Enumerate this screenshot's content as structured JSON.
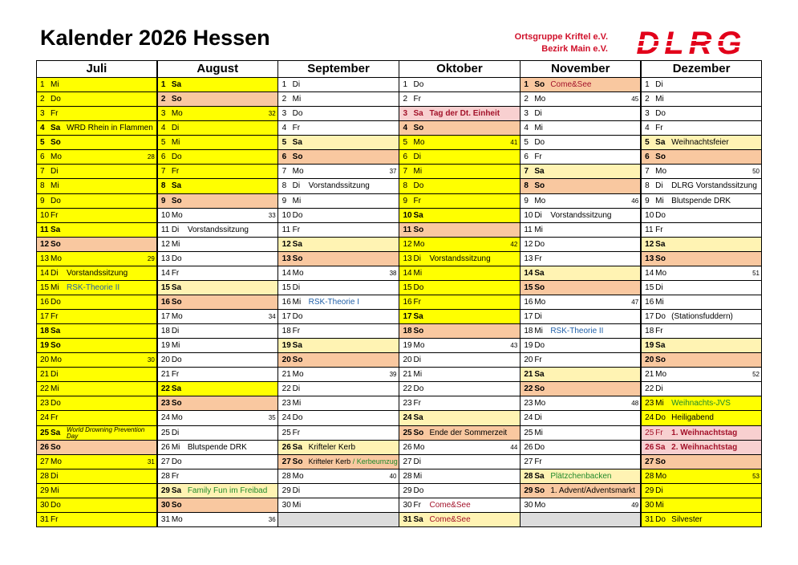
{
  "header": {
    "title": "Kalender 2026 Hessen",
    "org1": "Ortsgruppe Kriftel e.V.",
    "org2": "Bezirk Main e.V.",
    "logo": "DLRG"
  },
  "colors": {
    "y": "#ffff00",
    "s": "#fff3b3",
    "o": "#f9c8a0",
    "p": "#f8d0d0",
    "w": "#ffffff",
    "g": "#dcdcdc",
    "b": "#1f5fa8",
    "gr": "#1f8a2a",
    "r": "#a3122a",
    "k": "#000000",
    "logo": "#e2001a"
  },
  "months": [
    {
      "name": "Juli",
      "days": [
        {
          "d": 1,
          "wd": "Mi",
          "bg": "y"
        },
        {
          "d": 2,
          "wd": "Do",
          "bg": "y"
        },
        {
          "d": 3,
          "wd": "Fr",
          "bg": "y"
        },
        {
          "d": 4,
          "wd": "Sa",
          "bg": "y",
          "ev": "WRD Rhein in Flammen"
        },
        {
          "d": 5,
          "wd": "So",
          "bg": "y"
        },
        {
          "d": 6,
          "wd": "Mo",
          "bg": "y",
          "w": 28
        },
        {
          "d": 7,
          "wd": "Di",
          "bg": "y"
        },
        {
          "d": 8,
          "wd": "Mi",
          "bg": "y"
        },
        {
          "d": 9,
          "wd": "Do",
          "bg": "y"
        },
        {
          "d": 10,
          "wd": "Fr",
          "bg": "y"
        },
        {
          "d": 11,
          "wd": "Sa",
          "bg": "y"
        },
        {
          "d": 12,
          "wd": "So",
          "bg": "o"
        },
        {
          "d": 13,
          "wd": "Mo",
          "bg": "y",
          "w": 29
        },
        {
          "d": 14,
          "wd": "Di",
          "bg": "y",
          "ev": "Vorstandssitzung"
        },
        {
          "d": 15,
          "wd": "Mi",
          "bg": "y",
          "ev": "RSK-Theorie II",
          "ec": "b"
        },
        {
          "d": 16,
          "wd": "Do",
          "bg": "y"
        },
        {
          "d": 17,
          "wd": "Fr",
          "bg": "y"
        },
        {
          "d": 18,
          "wd": "Sa",
          "bg": "y"
        },
        {
          "d": 19,
          "wd": "So",
          "bg": "y"
        },
        {
          "d": 20,
          "wd": "Mo",
          "bg": "y",
          "w": 30
        },
        {
          "d": 21,
          "wd": "Di",
          "bg": "y"
        },
        {
          "d": 22,
          "wd": "Mi",
          "bg": "y"
        },
        {
          "d": 23,
          "wd": "Do",
          "bg": "y"
        },
        {
          "d": 24,
          "wd": "Fr",
          "bg": "y"
        },
        {
          "d": 25,
          "wd": "Sa",
          "bg": "y",
          "ev": "World Drowning Prevention Day",
          "small": true
        },
        {
          "d": 26,
          "wd": "So",
          "bg": "o"
        },
        {
          "d": 27,
          "wd": "Mo",
          "bg": "y",
          "w": 31
        },
        {
          "d": 28,
          "wd": "Di",
          "bg": "y"
        },
        {
          "d": 29,
          "wd": "Mi",
          "bg": "y"
        },
        {
          "d": 30,
          "wd": "Do",
          "bg": "y"
        },
        {
          "d": 31,
          "wd": "Fr",
          "bg": "y"
        }
      ]
    },
    {
      "name": "August",
      "days": [
        {
          "d": 1,
          "wd": "Sa",
          "bg": "y"
        },
        {
          "d": 2,
          "wd": "So",
          "bg": "o"
        },
        {
          "d": 3,
          "wd": "Mo",
          "bg": "y",
          "w": 32
        },
        {
          "d": 4,
          "wd": "Di",
          "bg": "y"
        },
        {
          "d": 5,
          "wd": "Mi",
          "bg": "y"
        },
        {
          "d": 6,
          "wd": "Do",
          "bg": "y"
        },
        {
          "d": 7,
          "wd": "Fr",
          "bg": "y"
        },
        {
          "d": 8,
          "wd": "Sa",
          "bg": "y"
        },
        {
          "d": 9,
          "wd": "So",
          "bg": "o"
        },
        {
          "d": 10,
          "wd": "Mo",
          "w": 33
        },
        {
          "d": 11,
          "wd": "Di",
          "ev": "Vorstandssitzung"
        },
        {
          "d": 12,
          "wd": "Mi"
        },
        {
          "d": 13,
          "wd": "Do"
        },
        {
          "d": 14,
          "wd": "Fr"
        },
        {
          "d": 15,
          "wd": "Sa",
          "bg": "s"
        },
        {
          "d": 16,
          "wd": "So",
          "bg": "o"
        },
        {
          "d": 17,
          "wd": "Mo",
          "w": 34
        },
        {
          "d": 18,
          "wd": "Di"
        },
        {
          "d": 19,
          "wd": "Mi"
        },
        {
          "d": 20,
          "wd": "Do"
        },
        {
          "d": 21,
          "wd": "Fr"
        },
        {
          "d": 22,
          "wd": "Sa",
          "bg": "y"
        },
        {
          "d": 23,
          "wd": "So",
          "bg": "o"
        },
        {
          "d": 24,
          "wd": "Mo",
          "w": 35
        },
        {
          "d": 25,
          "wd": "Di"
        },
        {
          "d": 26,
          "wd": "Mi",
          "ev": "Blutspende DRK"
        },
        {
          "d": 27,
          "wd": "Do"
        },
        {
          "d": 28,
          "wd": "Fr"
        },
        {
          "d": 29,
          "wd": "Sa",
          "bg": "s",
          "ev": "Family Fun im Freibad",
          "ec": "gr"
        },
        {
          "d": 30,
          "wd": "So",
          "bg": "o"
        },
        {
          "d": 31,
          "wd": "Mo",
          "w": 36
        }
      ]
    },
    {
      "name": "September",
      "days": [
        {
          "d": 1,
          "wd": "Di"
        },
        {
          "d": 2,
          "wd": "Mi"
        },
        {
          "d": 3,
          "wd": "Do"
        },
        {
          "d": 4,
          "wd": "Fr"
        },
        {
          "d": 5,
          "wd": "Sa",
          "bg": "s"
        },
        {
          "d": 6,
          "wd": "So",
          "bg": "o"
        },
        {
          "d": 7,
          "wd": "Mo",
          "w": 37
        },
        {
          "d": 8,
          "wd": "Di",
          "ev": "Vorstandssitzung"
        },
        {
          "d": 9,
          "wd": "Mi"
        },
        {
          "d": 10,
          "wd": "Do"
        },
        {
          "d": 11,
          "wd": "Fr"
        },
        {
          "d": 12,
          "wd": "Sa",
          "bg": "s"
        },
        {
          "d": 13,
          "wd": "So",
          "bg": "o"
        },
        {
          "d": 14,
          "wd": "Mo",
          "w": 38
        },
        {
          "d": 15,
          "wd": "Di"
        },
        {
          "d": 16,
          "wd": "Mi",
          "ev": "RSK-Theorie I",
          "ec": "b"
        },
        {
          "d": 17,
          "wd": "Do"
        },
        {
          "d": 18,
          "wd": "Fr"
        },
        {
          "d": 19,
          "wd": "Sa",
          "bg": "s"
        },
        {
          "d": 20,
          "wd": "So",
          "bg": "o"
        },
        {
          "d": 21,
          "wd": "Mo",
          "w": 39
        },
        {
          "d": 22,
          "wd": "Di"
        },
        {
          "d": 23,
          "wd": "Mi"
        },
        {
          "d": 24,
          "wd": "Do"
        },
        {
          "d": 25,
          "wd": "Fr"
        },
        {
          "d": 26,
          "wd": "Sa",
          "bg": "s",
          "ev": "Krifteler Kerb"
        },
        {
          "d": 27,
          "wd": "So",
          "bg": "o",
          "ev": "Krifteler Kerb",
          "ev2": "/ Kerbeumzug",
          "ec2": "gr"
        },
        {
          "d": 28,
          "wd": "Mo",
          "w": 40
        },
        {
          "d": 29,
          "wd": "Di"
        },
        {
          "d": 30,
          "wd": "Mi"
        }
      ]
    },
    {
      "name": "Oktober",
      "days": [
        {
          "d": 1,
          "wd": "Do"
        },
        {
          "d": 2,
          "wd": "Fr"
        },
        {
          "d": 3,
          "wd": "Sa",
          "bg": "p",
          "ev": "Tag der Dt. Einheit",
          "ec": "r",
          "red": true
        },
        {
          "d": 4,
          "wd": "So",
          "bg": "o"
        },
        {
          "d": 5,
          "wd": "Mo",
          "bg": "y",
          "w": 41
        },
        {
          "d": 6,
          "wd": "Di",
          "bg": "y"
        },
        {
          "d": 7,
          "wd": "Mi",
          "bg": "y"
        },
        {
          "d": 8,
          "wd": "Do",
          "bg": "y"
        },
        {
          "d": 9,
          "wd": "Fr",
          "bg": "y"
        },
        {
          "d": 10,
          "wd": "Sa",
          "bg": "y"
        },
        {
          "d": 11,
          "wd": "So",
          "bg": "o"
        },
        {
          "d": 12,
          "wd": "Mo",
          "bg": "y",
          "w": 42
        },
        {
          "d": 13,
          "wd": "Di",
          "bg": "y",
          "ev": "Vorstandssitzung"
        },
        {
          "d": 14,
          "wd": "Mi",
          "bg": "y"
        },
        {
          "d": 15,
          "wd": "Do",
          "bg": "y"
        },
        {
          "d": 16,
          "wd": "Fr",
          "bg": "y"
        },
        {
          "d": 17,
          "wd": "Sa",
          "bg": "y"
        },
        {
          "d": 18,
          "wd": "So",
          "bg": "o"
        },
        {
          "d": 19,
          "wd": "Mo",
          "w": 43
        },
        {
          "d": 20,
          "wd": "Di"
        },
        {
          "d": 21,
          "wd": "Mi"
        },
        {
          "d": 22,
          "wd": "Do"
        },
        {
          "d": 23,
          "wd": "Fr"
        },
        {
          "d": 24,
          "wd": "Sa",
          "bg": "s"
        },
        {
          "d": 25,
          "wd": "So",
          "bg": "o",
          "ev": "Ende der Sommerzeit"
        },
        {
          "d": 26,
          "wd": "Mo",
          "w": 44
        },
        {
          "d": 27,
          "wd": "Di"
        },
        {
          "d": 28,
          "wd": "Mi"
        },
        {
          "d": 29,
          "wd": "Do"
        },
        {
          "d": 30,
          "wd": "Fr",
          "ev": "Come&See",
          "ec": "r"
        },
        {
          "d": 31,
          "wd": "Sa",
          "bg": "s",
          "ev": "Come&See",
          "ec": "r"
        }
      ]
    },
    {
      "name": "November",
      "days": [
        {
          "d": 1,
          "wd": "So",
          "bg": "o",
          "ev": "Come&See",
          "ec": "r"
        },
        {
          "d": 2,
          "wd": "Mo",
          "w": 45
        },
        {
          "d": 3,
          "wd": "Di"
        },
        {
          "d": 4,
          "wd": "Mi"
        },
        {
          "d": 5,
          "wd": "Do"
        },
        {
          "d": 6,
          "wd": "Fr"
        },
        {
          "d": 7,
          "wd": "Sa",
          "bg": "s"
        },
        {
          "d": 8,
          "wd": "So",
          "bg": "o"
        },
        {
          "d": 9,
          "wd": "Mo",
          "w": 46
        },
        {
          "d": 10,
          "wd": "Di",
          "ev": "Vorstandssitzung"
        },
        {
          "d": 11,
          "wd": "Mi"
        },
        {
          "d": 12,
          "wd": "Do"
        },
        {
          "d": 13,
          "wd": "Fr"
        },
        {
          "d": 14,
          "wd": "Sa",
          "bg": "s"
        },
        {
          "d": 15,
          "wd": "So",
          "bg": "o"
        },
        {
          "d": 16,
          "wd": "Mo",
          "w": 47
        },
        {
          "d": 17,
          "wd": "Di"
        },
        {
          "d": 18,
          "wd": "Mi",
          "ev": "RSK-Theorie II",
          "ec": "b"
        },
        {
          "d": 19,
          "wd": "Do"
        },
        {
          "d": 20,
          "wd": "Fr"
        },
        {
          "d": 21,
          "wd": "Sa",
          "bg": "s"
        },
        {
          "d": 22,
          "wd": "So",
          "bg": "o"
        },
        {
          "d": 23,
          "wd": "Mo",
          "w": 48
        },
        {
          "d": 24,
          "wd": "Di"
        },
        {
          "d": 25,
          "wd": "Mi"
        },
        {
          "d": 26,
          "wd": "Do"
        },
        {
          "d": 27,
          "wd": "Fr"
        },
        {
          "d": 28,
          "wd": "Sa",
          "bg": "s",
          "ev": "Plätzchenbacken",
          "ec": "gr"
        },
        {
          "d": 29,
          "wd": "So",
          "bg": "o",
          "ev": "1. Advent/Adventsmarkt"
        },
        {
          "d": 30,
          "wd": "Mo",
          "w": 49
        }
      ]
    },
    {
      "name": "Dezember",
      "days": [
        {
          "d": 1,
          "wd": "Di"
        },
        {
          "d": 2,
          "wd": "Mi"
        },
        {
          "d": 3,
          "wd": "Do"
        },
        {
          "d": 4,
          "wd": "Fr"
        },
        {
          "d": 5,
          "wd": "Sa",
          "bg": "s",
          "ev": "Weihnachtsfeier"
        },
        {
          "d": 6,
          "wd": "So",
          "bg": "o"
        },
        {
          "d": 7,
          "wd": "Mo",
          "w": 50
        },
        {
          "d": 8,
          "wd": "Di",
          "ev": "DLRG Vorstandssitzung"
        },
        {
          "d": 9,
          "wd": "Mi",
          "ev": "Blutspende DRK"
        },
        {
          "d": 10,
          "wd": "Do"
        },
        {
          "d": 11,
          "wd": "Fr"
        },
        {
          "d": 12,
          "wd": "Sa",
          "bg": "s"
        },
        {
          "d": 13,
          "wd": "So",
          "bg": "o"
        },
        {
          "d": 14,
          "wd": "Mo",
          "w": 51
        },
        {
          "d": 15,
          "wd": "Di"
        },
        {
          "d": 16,
          "wd": "Mi"
        },
        {
          "d": 17,
          "wd": "Do",
          "ev": "(Stationsfuddern)"
        },
        {
          "d": 18,
          "wd": "Fr"
        },
        {
          "d": 19,
          "wd": "Sa",
          "bg": "s"
        },
        {
          "d": 20,
          "wd": "So",
          "bg": "o"
        },
        {
          "d": 21,
          "wd": "Mo",
          "w": 52
        },
        {
          "d": 22,
          "wd": "Di"
        },
        {
          "d": 23,
          "wd": "Mi",
          "bg": "y",
          "ev": "Weihnachts-JVS",
          "ec": "gr"
        },
        {
          "d": 24,
          "wd": "Do",
          "bg": "y",
          "ev": "Heiligabend"
        },
        {
          "d": 25,
          "wd": "Fr",
          "bg": "p",
          "ev": "1. Weihnachtstag",
          "ec": "r",
          "red": true
        },
        {
          "d": 26,
          "wd": "Sa",
          "bg": "p",
          "ev": "2. Weihnachtstag",
          "ec": "r",
          "red": true
        },
        {
          "d": 27,
          "wd": "So",
          "bg": "o"
        },
        {
          "d": 28,
          "wd": "Mo",
          "bg": "y",
          "w": 53
        },
        {
          "d": 29,
          "wd": "Di",
          "bg": "y"
        },
        {
          "d": 30,
          "wd": "Mi",
          "bg": "y"
        },
        {
          "d": 31,
          "wd": "Do",
          "bg": "y",
          "ev": "Silvester"
        }
      ]
    }
  ]
}
